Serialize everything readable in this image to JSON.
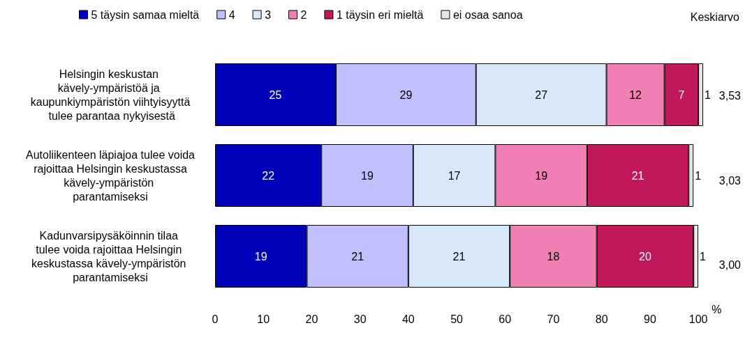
{
  "chart_data": {
    "type": "bar",
    "orientation": "horizontal",
    "stacked": true,
    "xlabel": "%",
    "categories": [
      "Helsingin keskustan kävely-ympäristöä ja kaupunkiympäristön viihtyisyyttä tulee parantaa nykyisestä",
      "Autoliikenteen läpiajoa tulee voida rajoittaa Helsingin keskustassa kävely-ympäristön parantamiseksi",
      "Kadunvarsipysäköinnin tilaa tulee voida rajoittaa Helsingin keskustassa kävely-ympäristön parantamiseksi"
    ],
    "series": [
      {
        "name": "5 täysin samaa mieltä",
        "color": "#0000b8",
        "values": [
          25,
          22,
          19
        ]
      },
      {
        "name": "4",
        "color": "#c0c0ff",
        "values": [
          29,
          19,
          21
        ]
      },
      {
        "name": "3",
        "color": "#d9e8f8",
        "values": [
          27,
          17,
          21
        ]
      },
      {
        "name": "2",
        "color": "#f080b4",
        "values": [
          12,
          19,
          18
        ]
      },
      {
        "name": "1 täysin eri mieltä",
        "color": "#c0185a",
        "values": [
          7,
          21,
          20
        ]
      },
      {
        "name": "ei osaa sanoa",
        "color": "#e6e6e6",
        "values": [
          1,
          1,
          1
        ]
      }
    ],
    "xlim": [
      0,
      101
    ],
    "xticks": [
      0,
      10,
      20,
      30,
      40,
      50,
      60,
      70,
      80,
      90,
      100
    ],
    "data_labels": true,
    "legend": "top",
    "grid": false,
    "annotations": [
      "Keskiarvo",
      "3,53",
      "3,03",
      "3,00"
    ]
  }
}
